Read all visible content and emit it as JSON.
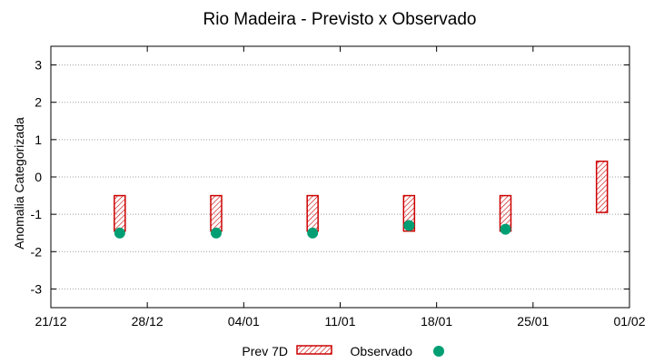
{
  "chart_data": {
    "type": "range-bar-and-scatter",
    "title": "Rio Madeira - Previsto x Observado",
    "xlabel": "",
    "ylabel": "Anomalia Categorizada",
    "ylim": [
      -3.5,
      3.5
    ],
    "yticks": [
      -3,
      -2,
      -1,
      0,
      1,
      2,
      3
    ],
    "yticklabels": [
      "-3",
      "-2",
      "-1",
      "0",
      "1",
      "2",
      "3"
    ],
    "xlim": [
      0,
      42
    ],
    "xticks": [
      0,
      7,
      14,
      21,
      28,
      35,
      42
    ],
    "xticklabels": [
      "21/12",
      "28/12",
      "04/01",
      "11/01",
      "18/01",
      "25/01",
      "01/02"
    ],
    "grid": true,
    "legend_position": "bottom",
    "series": [
      {
        "name": "Prev 7D",
        "kind": "range-bar",
        "color": "#cc0000",
        "x": [
          5,
          12,
          19,
          26,
          33,
          40
        ],
        "low": [
          -1.45,
          -1.45,
          -1.45,
          -1.45,
          -1.45,
          -0.95
        ],
        "high": [
          -0.5,
          -0.5,
          -0.5,
          -0.5,
          -0.5,
          0.42
        ]
      },
      {
        "name": "Observado",
        "kind": "scatter",
        "color": "#009e73",
        "x": [
          5,
          12,
          19,
          26,
          33
        ],
        "y": [
          -1.5,
          -1.5,
          -1.5,
          -1.3,
          -1.4
        ]
      }
    ]
  }
}
